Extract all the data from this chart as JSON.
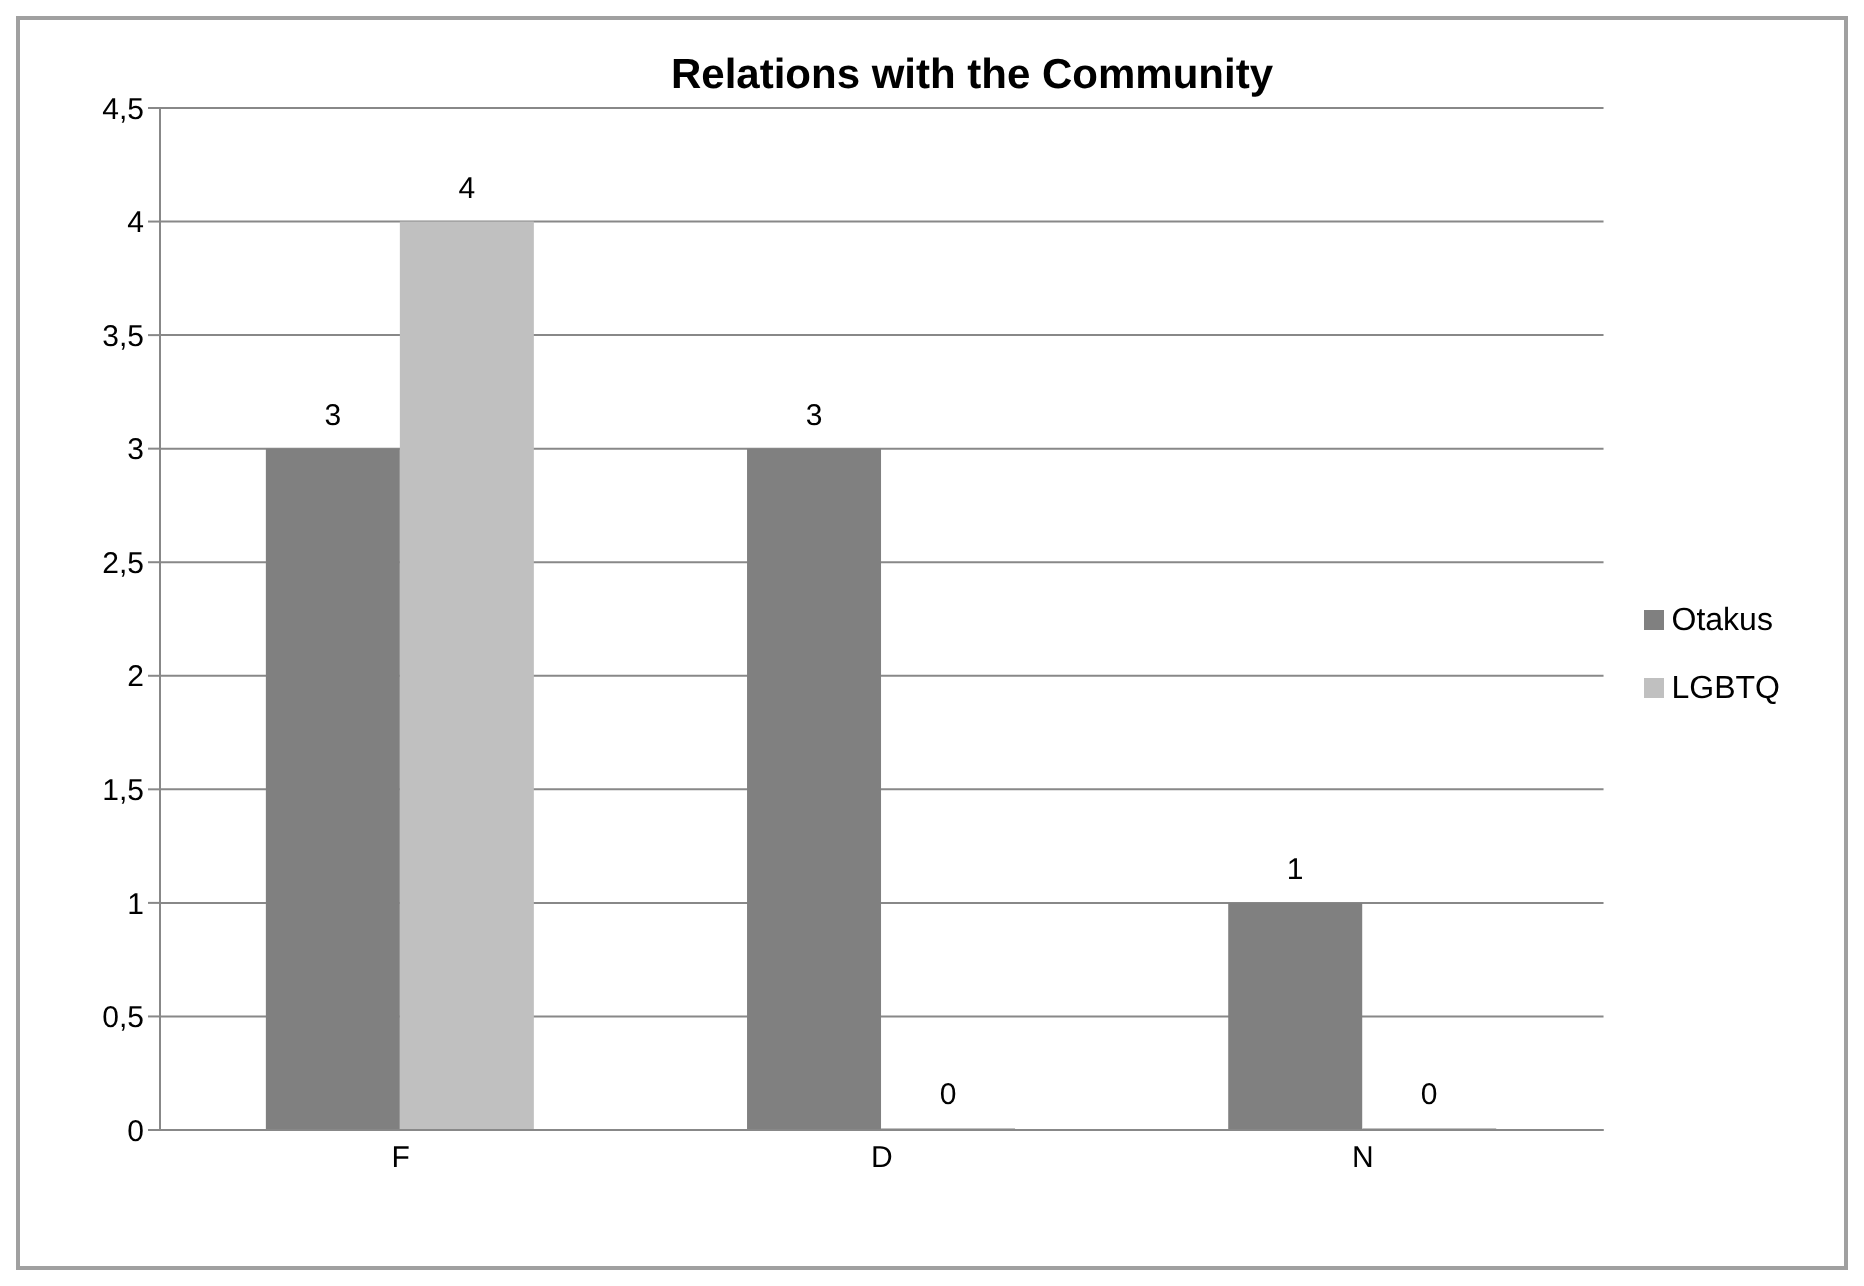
{
  "chart_data": {
    "type": "bar",
    "title": "Relations with the Community",
    "categories": [
      "F",
      "D",
      "N"
    ],
    "series": [
      {
        "name": "Otakus",
        "color": "#808080",
        "values": [
          3,
          3,
          1
        ]
      },
      {
        "name": "LGBTQ",
        "color": "#c0c0c0",
        "values": [
          4,
          0,
          0
        ]
      }
    ],
    "ylim": [
      0,
      4.5
    ],
    "yticks": [
      0,
      {
        "value": 0.5,
        "label": "0,5"
      },
      1,
      {
        "value": 1.5,
        "label": "1,5"
      },
      2,
      {
        "value": 2.5,
        "label": "2,5"
      },
      3,
      {
        "value": 3.5,
        "label": "3,5"
      },
      4,
      {
        "value": 4.5,
        "label": "4,5"
      }
    ],
    "grid": "y",
    "legend": "right",
    "data_labels": true
  }
}
